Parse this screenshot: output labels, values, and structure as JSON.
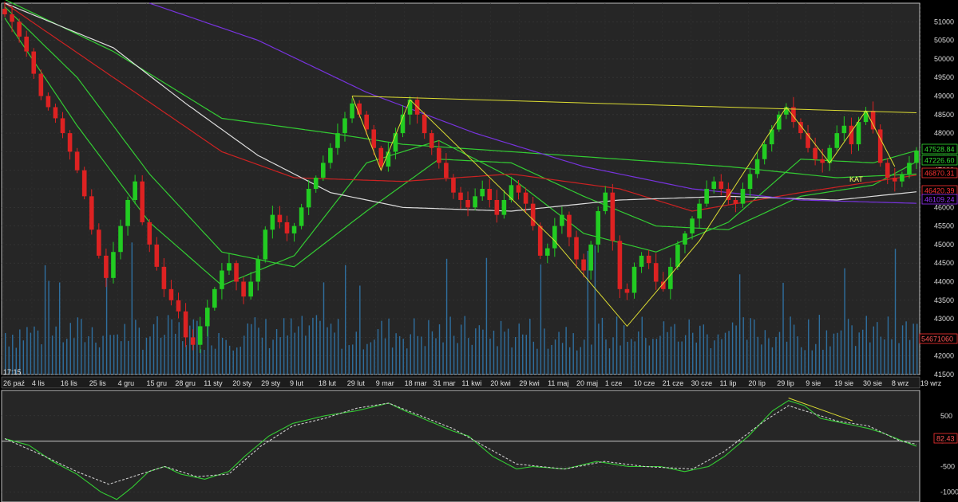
{
  "chart_data": [
    {
      "type": "candlestick",
      "time_label": "17:15",
      "annotation": "KAT",
      "ylim": [
        41500,
        51500
      ],
      "y_ticks": [
        51000,
        50500,
        50000,
        49500,
        49000,
        48500,
        48000,
        47500,
        47000,
        46500,
        46000,
        45500,
        45000,
        44500,
        44000,
        43500,
        43000,
        42500,
        42000,
        41500
      ],
      "x_labels": [
        "26 paź",
        "4 lis",
        "16 lis",
        "25 lis",
        "4 gru",
        "15 gru",
        "28 gru",
        "11 sty",
        "20 sty",
        "29 sty",
        "9 lut",
        "18 lut",
        "29 lut",
        "9 mar",
        "18 mar",
        "31 mar",
        "11 kwi",
        "20 kwi",
        "29 kwi",
        "11 maj",
        "20 maj",
        "1 cze",
        "10 cze",
        "21 cze",
        "30 cze",
        "11 lip",
        "20 lip",
        "29 lip",
        "9 sie",
        "19 sie",
        "30 sie",
        "8 wrz",
        "19 wrz"
      ],
      "price_path": [
        [
          0,
          51200
        ],
        [
          1,
          51000
        ],
        [
          2,
          50600
        ],
        [
          3,
          50200
        ],
        [
          4,
          49600
        ],
        [
          5,
          49000
        ],
        [
          6,
          48700
        ],
        [
          7,
          48400
        ],
        [
          8,
          48000
        ],
        [
          9,
          47500
        ],
        [
          10,
          47000
        ],
        [
          11,
          46300
        ],
        [
          12,
          45400
        ],
        [
          13,
          44700
        ],
        [
          14,
          44100
        ],
        [
          15,
          44800
        ],
        [
          16,
          45500
        ],
        [
          17,
          46200
        ],
        [
          18,
          46700
        ],
        [
          19,
          45600
        ],
        [
          20,
          45000
        ],
        [
          21,
          44400
        ],
        [
          22,
          43800
        ],
        [
          23,
          43500
        ],
        [
          24,
          43200
        ],
        [
          25,
          42500
        ],
        [
          26,
          42300
        ],
        [
          27,
          42800
        ],
        [
          28,
          43300
        ],
        [
          29,
          43800
        ],
        [
          30,
          44300
        ],
        [
          31,
          44500
        ],
        [
          32,
          44000
        ],
        [
          33,
          43600
        ],
        [
          34,
          44000
        ],
        [
          35,
          44600
        ],
        [
          36,
          45400
        ],
        [
          37,
          45800
        ],
        [
          38,
          45600
        ],
        [
          39,
          45300
        ],
        [
          40,
          45500
        ],
        [
          41,
          46000
        ],
        [
          42,
          46500
        ],
        [
          43,
          46800
        ],
        [
          44,
          47200
        ],
        [
          45,
          47600
        ],
        [
          46,
          48000
        ],
        [
          47,
          48400
        ],
        [
          48,
          48800
        ],
        [
          49,
          48500
        ],
        [
          50,
          48100
        ],
        [
          51,
          47600
        ],
        [
          52,
          47100
        ],
        [
          53,
          47500
        ],
        [
          54,
          48000
        ],
        [
          55,
          48500
        ],
        [
          56,
          48900
        ],
        [
          57,
          48500
        ],
        [
          58,
          48000
        ],
        [
          59,
          47600
        ],
        [
          60,
          47200
        ],
        [
          61,
          46800
        ],
        [
          62,
          46400
        ],
        [
          63,
          46200
        ],
        [
          64,
          46000
        ],
        [
          65,
          46300
        ],
        [
          66,
          46500
        ],
        [
          67,
          46200
        ],
        [
          68,
          45800
        ],
        [
          69,
          46200
        ],
        [
          70,
          46600
        ],
        [
          71,
          46400
        ],
        [
          72,
          46100
        ],
        [
          73,
          45500
        ],
        [
          74,
          44700
        ],
        [
          75,
          44900
        ],
        [
          76,
          45500
        ],
        [
          77,
          45800
        ],
        [
          78,
          45200
        ],
        [
          79,
          44600
        ],
        [
          80,
          44300
        ],
        [
          81,
          45000
        ],
        [
          82,
          45900
        ],
        [
          83,
          46400
        ],
        [
          84,
          45100
        ],
        [
          85,
          43800
        ],
        [
          86,
          43700
        ],
        [
          87,
          44400
        ],
        [
          88,
          44700
        ],
        [
          89,
          44500
        ],
        [
          90,
          44000
        ],
        [
          91,
          43800
        ],
        [
          92,
          44400
        ],
        [
          93,
          45000
        ],
        [
          94,
          45300
        ],
        [
          95,
          45700
        ],
        [
          96,
          46100
        ],
        [
          97,
          46500
        ],
        [
          98,
          46700
        ],
        [
          99,
          46500
        ],
        [
          100,
          46200
        ],
        [
          101,
          46100
        ],
        [
          102,
          46500
        ],
        [
          103,
          46900
        ],
        [
          104,
          47300
        ],
        [
          105,
          47700
        ],
        [
          106,
          48100
        ],
        [
          107,
          48500
        ],
        [
          108,
          48700
        ],
        [
          109,
          48300
        ],
        [
          110,
          48000
        ],
        [
          111,
          47600
        ],
        [
          112,
          47300
        ],
        [
          113,
          47200
        ],
        [
          114,
          47600
        ],
        [
          115,
          48000
        ],
        [
          116,
          48200
        ],
        [
          117,
          47700
        ],
        [
          118,
          48300
        ],
        [
          119,
          48600
        ],
        [
          120,
          48100
        ],
        [
          121,
          47200
        ],
        [
          122,
          46800
        ],
        [
          123,
          46700
        ],
        [
          124,
          46900
        ],
        [
          125,
          47200
        ],
        [
          126,
          47530
        ]
      ],
      "indicators": [
        {
          "label": "47528.84",
          "color": "#33dd33"
        },
        {
          "label": "47226.60",
          "color": "#33dd33"
        },
        {
          "label": "46870.31",
          "color": "#ff3333"
        },
        {
          "label": "46420.39",
          "color": "#ff3333"
        },
        {
          "label": "46109.24",
          "color": "#9933ff"
        }
      ],
      "volume_label": "54671060",
      "moving_averages": [
        {
          "name": "ma-green-fast",
          "color": "#33cc33",
          "path": [
            [
              0,
              51100
            ],
            [
              10,
              48200
            ],
            [
              20,
              45600
            ],
            [
              30,
              43900
            ],
            [
              40,
              44700
            ],
            [
              50,
              47200
            ],
            [
              60,
              47800
            ],
            [
              70,
              46800
            ],
            [
              80,
              45300
            ],
            [
              90,
              44800
            ],
            [
              100,
              45600
            ],
            [
              110,
              47300
            ],
            [
              120,
              47200
            ],
            [
              126,
              47530
            ]
          ]
        },
        {
          "name": "ma-green-mid",
          "color": "#33cc33",
          "path": [
            [
              0,
              51400
            ],
            [
              10,
              49500
            ],
            [
              20,
              46900
            ],
            [
              30,
              44800
            ],
            [
              40,
              44400
            ],
            [
              50,
              45900
            ],
            [
              60,
              47300
            ],
            [
              70,
              47200
            ],
            [
              80,
              46300
            ],
            [
              90,
              45500
            ],
            [
              100,
              45400
            ],
            [
              110,
              46300
            ],
            [
              120,
              46600
            ],
            [
              126,
              47230
            ]
          ]
        },
        {
          "name": "ma-green-slow",
          "color": "#33cc33",
          "path": [
            [
              0,
              51600
            ],
            [
              15,
              50200
            ],
            [
              30,
              48400
            ],
            [
              45,
              48000
            ],
            [
              55,
              47700
            ],
            [
              70,
              47500
            ],
            [
              85,
              47300
            ],
            [
              100,
              47100
            ],
            [
              115,
              46800
            ],
            [
              126,
              46900
            ]
          ]
        },
        {
          "name": "ma-red",
          "color": "#cc2222",
          "path": [
            [
              0,
              51500
            ],
            [
              15,
              49500
            ],
            [
              30,
              47500
            ],
            [
              40,
              46800
            ],
            [
              55,
              46700
            ],
            [
              70,
              46900
            ],
            [
              85,
              46500
            ],
            [
              95,
              45900
            ],
            [
              110,
              46400
            ],
            [
              126,
              46870
            ]
          ]
        },
        {
          "name": "ma-white",
          "color": "#dddddd",
          "path": [
            [
              0,
              51500
            ],
            [
              15,
              50300
            ],
            [
              25,
              48800
            ],
            [
              35,
              47400
            ],
            [
              45,
              46400
            ],
            [
              55,
              46000
            ],
            [
              70,
              45900
            ],
            [
              85,
              46200
            ],
            [
              100,
              46300
            ],
            [
              115,
              46200
            ],
            [
              126,
              46420
            ]
          ]
        },
        {
          "name": "ma-purple",
          "color": "#7733dd",
          "path": [
            [
              20,
              51500
            ],
            [
              35,
              50500
            ],
            [
              50,
              49100
            ],
            [
              65,
              48000
            ],
            [
              80,
              47100
            ],
            [
              95,
              46500
            ],
            [
              110,
              46200
            ],
            [
              126,
              46110
            ]
          ]
        }
      ],
      "trendlines": [
        {
          "color": "#dddd33",
          "points": [
            [
              48,
              49000
            ],
            [
              126,
              48550
            ]
          ]
        },
        {
          "color": "#dddd33",
          "points": [
            [
              48,
              49000
            ],
            [
              52,
              47000
            ],
            [
              56,
              48900
            ],
            [
              76,
              45100
            ],
            [
              86,
              42800
            ],
            [
              96,
              45100
            ],
            [
              108,
              48700
            ],
            [
              114,
              47200
            ],
            [
              119,
              48600
            ],
            [
              123,
              47100
            ]
          ]
        }
      ]
    },
    {
      "type": "line",
      "name": "oscillator",
      "ylim": [
        -1200,
        1000
      ],
      "y_ticks": [
        500,
        0,
        -500,
        -1000
      ],
      "zero_line": true,
      "value_label": "82.43",
      "series": [
        {
          "name": "osc-main",
          "color": "#33cc33",
          "dash": false,
          "path": [
            [
              0,
              50
            ],
            [
              3,
              -80
            ],
            [
              6,
              -400
            ],
            [
              9,
              -650
            ],
            [
              12,
              -1000
            ],
            [
              14,
              -1150
            ],
            [
              16,
              -900
            ],
            [
              18,
              -600
            ],
            [
              20,
              -500
            ],
            [
              22,
              -650
            ],
            [
              25,
              -750
            ],
            [
              28,
              -600
            ],
            [
              30,
              -300
            ],
            [
              33,
              100
            ],
            [
              36,
              350
            ],
            [
              40,
              500
            ],
            [
              44,
              600
            ],
            [
              48,
              750
            ],
            [
              50,
              600
            ],
            [
              53,
              400
            ],
            [
              56,
              200
            ],
            [
              58,
              100
            ],
            [
              61,
              -300
            ],
            [
              64,
              -550
            ],
            [
              66,
              -500
            ],
            [
              70,
              -550
            ],
            [
              74,
              -400
            ],
            [
              78,
              -500
            ],
            [
              82,
              -500
            ],
            [
              85,
              -600
            ],
            [
              88,
              -500
            ],
            [
              90,
              -300
            ],
            [
              93,
              100
            ],
            [
              96,
              600
            ],
            [
              98,
              800
            ],
            [
              100,
              700
            ],
            [
              102,
              450
            ],
            [
              105,
              350
            ],
            [
              108,
              250
            ],
            [
              110,
              150
            ],
            [
              112,
              20
            ],
            [
              114,
              -100
            ]
          ]
        },
        {
          "name": "osc-signal",
          "color": "#cccccc",
          "dash": true,
          "path": [
            [
              0,
              50
            ],
            [
              5,
              -300
            ],
            [
              9,
              -600
            ],
            [
              13,
              -850
            ],
            [
              17,
              -650
            ],
            [
              20,
              -500
            ],
            [
              24,
              -700
            ],
            [
              28,
              -650
            ],
            [
              32,
              -100
            ],
            [
              36,
              300
            ],
            [
              40,
              450
            ],
            [
              44,
              650
            ],
            [
              48,
              750
            ],
            [
              52,
              500
            ],
            [
              56,
              250
            ],
            [
              60,
              -100
            ],
            [
              64,
              -450
            ],
            [
              70,
              -550
            ],
            [
              75,
              -400
            ],
            [
              80,
              -500
            ],
            [
              86,
              -550
            ],
            [
              90,
              -200
            ],
            [
              95,
              400
            ],
            [
              98,
              700
            ],
            [
              101,
              550
            ],
            [
              104,
              400
            ],
            [
              108,
              300
            ],
            [
              112,
              0
            ],
            [
              114,
              -60
            ]
          ]
        }
      ],
      "trendlines": [
        {
          "color": "#dddd33",
          "points": [
            [
              98,
              850
            ],
            [
              106,
              400
            ]
          ]
        }
      ]
    }
  ]
}
